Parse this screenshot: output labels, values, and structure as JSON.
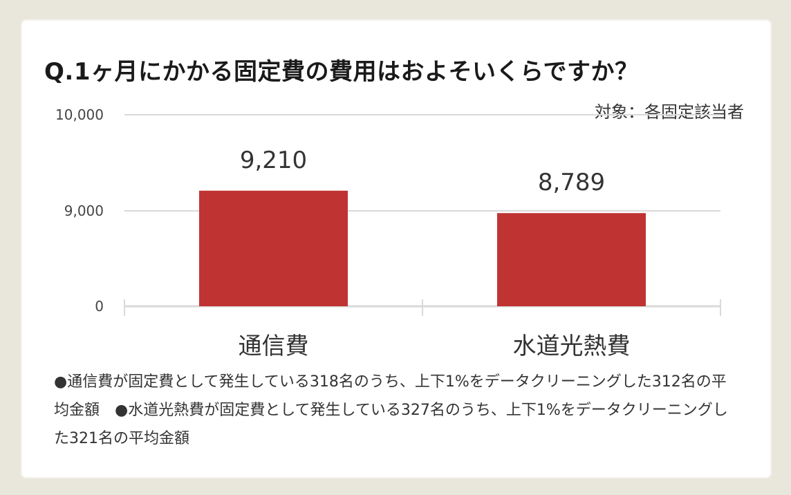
{
  "title": "Q.1ヶ月にかかる固定費の費用はおよそいくらですか？",
  "target_label": "対象：各固定該当者",
  "note": "●通信費が固定費として発生している318名のうち、上下1%をデータクリーニングした312名の平均金額　●水道光熱費が固定費として発生している327名のうち、上下1%をデータクリーニングした321名の平均金額",
  "colors": {
    "bar": "#bf3432",
    "grid": "#d9d9d9",
    "background": "#e9e6dc",
    "card": "#ffffff"
  },
  "chart_data": {
    "type": "bar",
    "categories": [
      "通信費",
      "水道光熱費"
    ],
    "values": [
      9210,
      8789
    ],
    "data_labels": [
      "9,210",
      "8,789"
    ],
    "y_ticks": [
      0,
      9000,
      10000
    ],
    "y_tick_labels": [
      "0",
      "9,000",
      "10,000"
    ],
    "y_scale": "broken axis: 0 to 9,000 compressed, 9,000 to 10,000 linear",
    "ylim": [
      0,
      10000
    ],
    "grid": true,
    "legend": "none"
  }
}
